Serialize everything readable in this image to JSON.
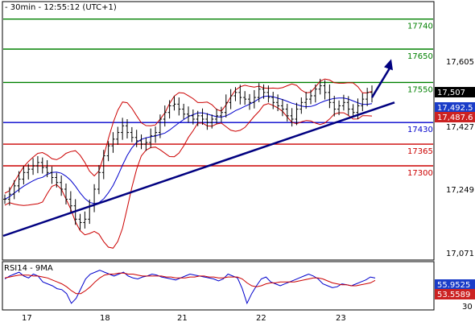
{
  "header": {
    "title": "- 30min - 12:55:12 (UTC+1)"
  },
  "colors": {
    "resistance": "#008000",
    "support_blue": "#0000cc",
    "support_red": "#cc0000",
    "trendline": "#000080",
    "arrow": "#000080",
    "price": "#000000",
    "ma": "#0000cc",
    "bollinger": "#cc0000",
    "rsi": "#0000cc",
    "rsi_ma": "#cc0000",
    "badge_blue": "#1a3cc8",
    "badge_red": "#cc2222",
    "badge_black": "#000000"
  },
  "chart_data": [
    {
      "type": "candlestick",
      "title": "- 30min - 12:55:12 (UTC+1)",
      "x_ticks": [
        "17",
        "18",
        "21",
        "22",
        "23"
      ],
      "y_ticks": [
        "17,605",
        "17,427",
        "17,249",
        "17,071"
      ],
      "ylim": [
        17020,
        17790
      ],
      "levels": [
        {
          "value": 17740,
          "label": "17740",
          "color": "#008000"
        },
        {
          "value": 17650,
          "label": "17650",
          "color": "#008000"
        },
        {
          "value": 17550,
          "label": "17550",
          "color": "#008000"
        },
        {
          "value": 17430,
          "label": "17430",
          "color": "#0000cc"
        },
        {
          "value": 17365,
          "label": "17365",
          "color": "#cc0000"
        },
        {
          "value": 17300,
          "label": "17300",
          "color": "#cc0000"
        }
      ],
      "current_values": [
        {
          "label": "17,507",
          "color": "#000000"
        },
        {
          "label": "17,492.5",
          "color": "#1a3cc8"
        },
        {
          "label": "17,487.6",
          "color": "#cc2222"
        }
      ],
      "price_close": [
        17200,
        17215,
        17240,
        17260,
        17280,
        17290,
        17300,
        17310,
        17295,
        17280,
        17265,
        17250,
        17230,
        17200,
        17180,
        17140,
        17130,
        17140,
        17180,
        17230,
        17280,
        17330,
        17360,
        17380,
        17400,
        17420,
        17400,
        17385,
        17375,
        17365,
        17370,
        17390,
        17400,
        17440,
        17460,
        17480,
        17485,
        17470,
        17455,
        17450,
        17440,
        17450,
        17440,
        17430,
        17440,
        17450,
        17460,
        17490,
        17510,
        17520,
        17505,
        17500,
        17490,
        17505,
        17530,
        17520,
        17505,
        17490,
        17480,
        17470,
        17450,
        17440,
        17470,
        17490,
        17500,
        17510,
        17530,
        17540,
        17520,
        17490,
        17470,
        17480,
        17490,
        17470,
        17460,
        17480,
        17500,
        17520,
        17507
      ],
      "trendline": {
        "start": 17090,
        "end": 17490
      },
      "arrow": {
        "start_value": 17505,
        "end_value": 17620
      }
    },
    {
      "type": "line",
      "title": "RSI14 - 9MA",
      "ylim": [
        24,
        72
      ],
      "y_ticks": [
        "30"
      ],
      "current_values": [
        {
          "label": "55.9525",
          "color": "#1a3cc8"
        },
        {
          "label": "53.5589",
          "color": "#cc2222"
        }
      ],
      "series": [
        {
          "values": [
            55,
            58,
            60,
            62,
            58,
            56,
            60,
            58,
            52,
            50,
            48,
            45,
            44,
            40,
            30,
            35,
            45,
            55,
            60,
            62,
            64,
            62,
            60,
            58,
            60,
            62,
            58,
            56,
            55,
            57,
            58,
            60,
            59,
            57,
            56,
            55,
            54,
            56,
            58,
            60,
            59,
            58,
            57,
            56,
            55,
            53,
            55,
            60,
            58,
            56,
            45,
            30,
            40,
            48,
            55,
            57,
            52,
            50,
            48,
            50,
            52,
            54,
            56,
            58,
            60,
            58,
            55,
            50,
            48,
            46,
            47,
            50,
            49,
            48,
            50,
            52,
            54,
            57,
            55.95
          ],
          "color": "#0000cc"
        },
        {
          "values": [
            56,
            57,
            58,
            59,
            59,
            59,
            58,
            58,
            57,
            56,
            54,
            52,
            50,
            47,
            43,
            40,
            40,
            43,
            47,
            52,
            56,
            59,
            60,
            60,
            61,
            61,
            60,
            60,
            59,
            58,
            58,
            58,
            58,
            58,
            57,
            57,
            56,
            56,
            56,
            57,
            57,
            58,
            58,
            57,
            57,
            56,
            56,
            57,
            57,
            57,
            55,
            51,
            48,
            47,
            48,
            50,
            51,
            51,
            52,
            52,
            52,
            52,
            53,
            54,
            55,
            56,
            56,
            55,
            53,
            51,
            50,
            49,
            49,
            48,
            48,
            49,
            50,
            51,
            53.56
          ],
          "color": "#cc0000"
        }
      ]
    }
  ]
}
